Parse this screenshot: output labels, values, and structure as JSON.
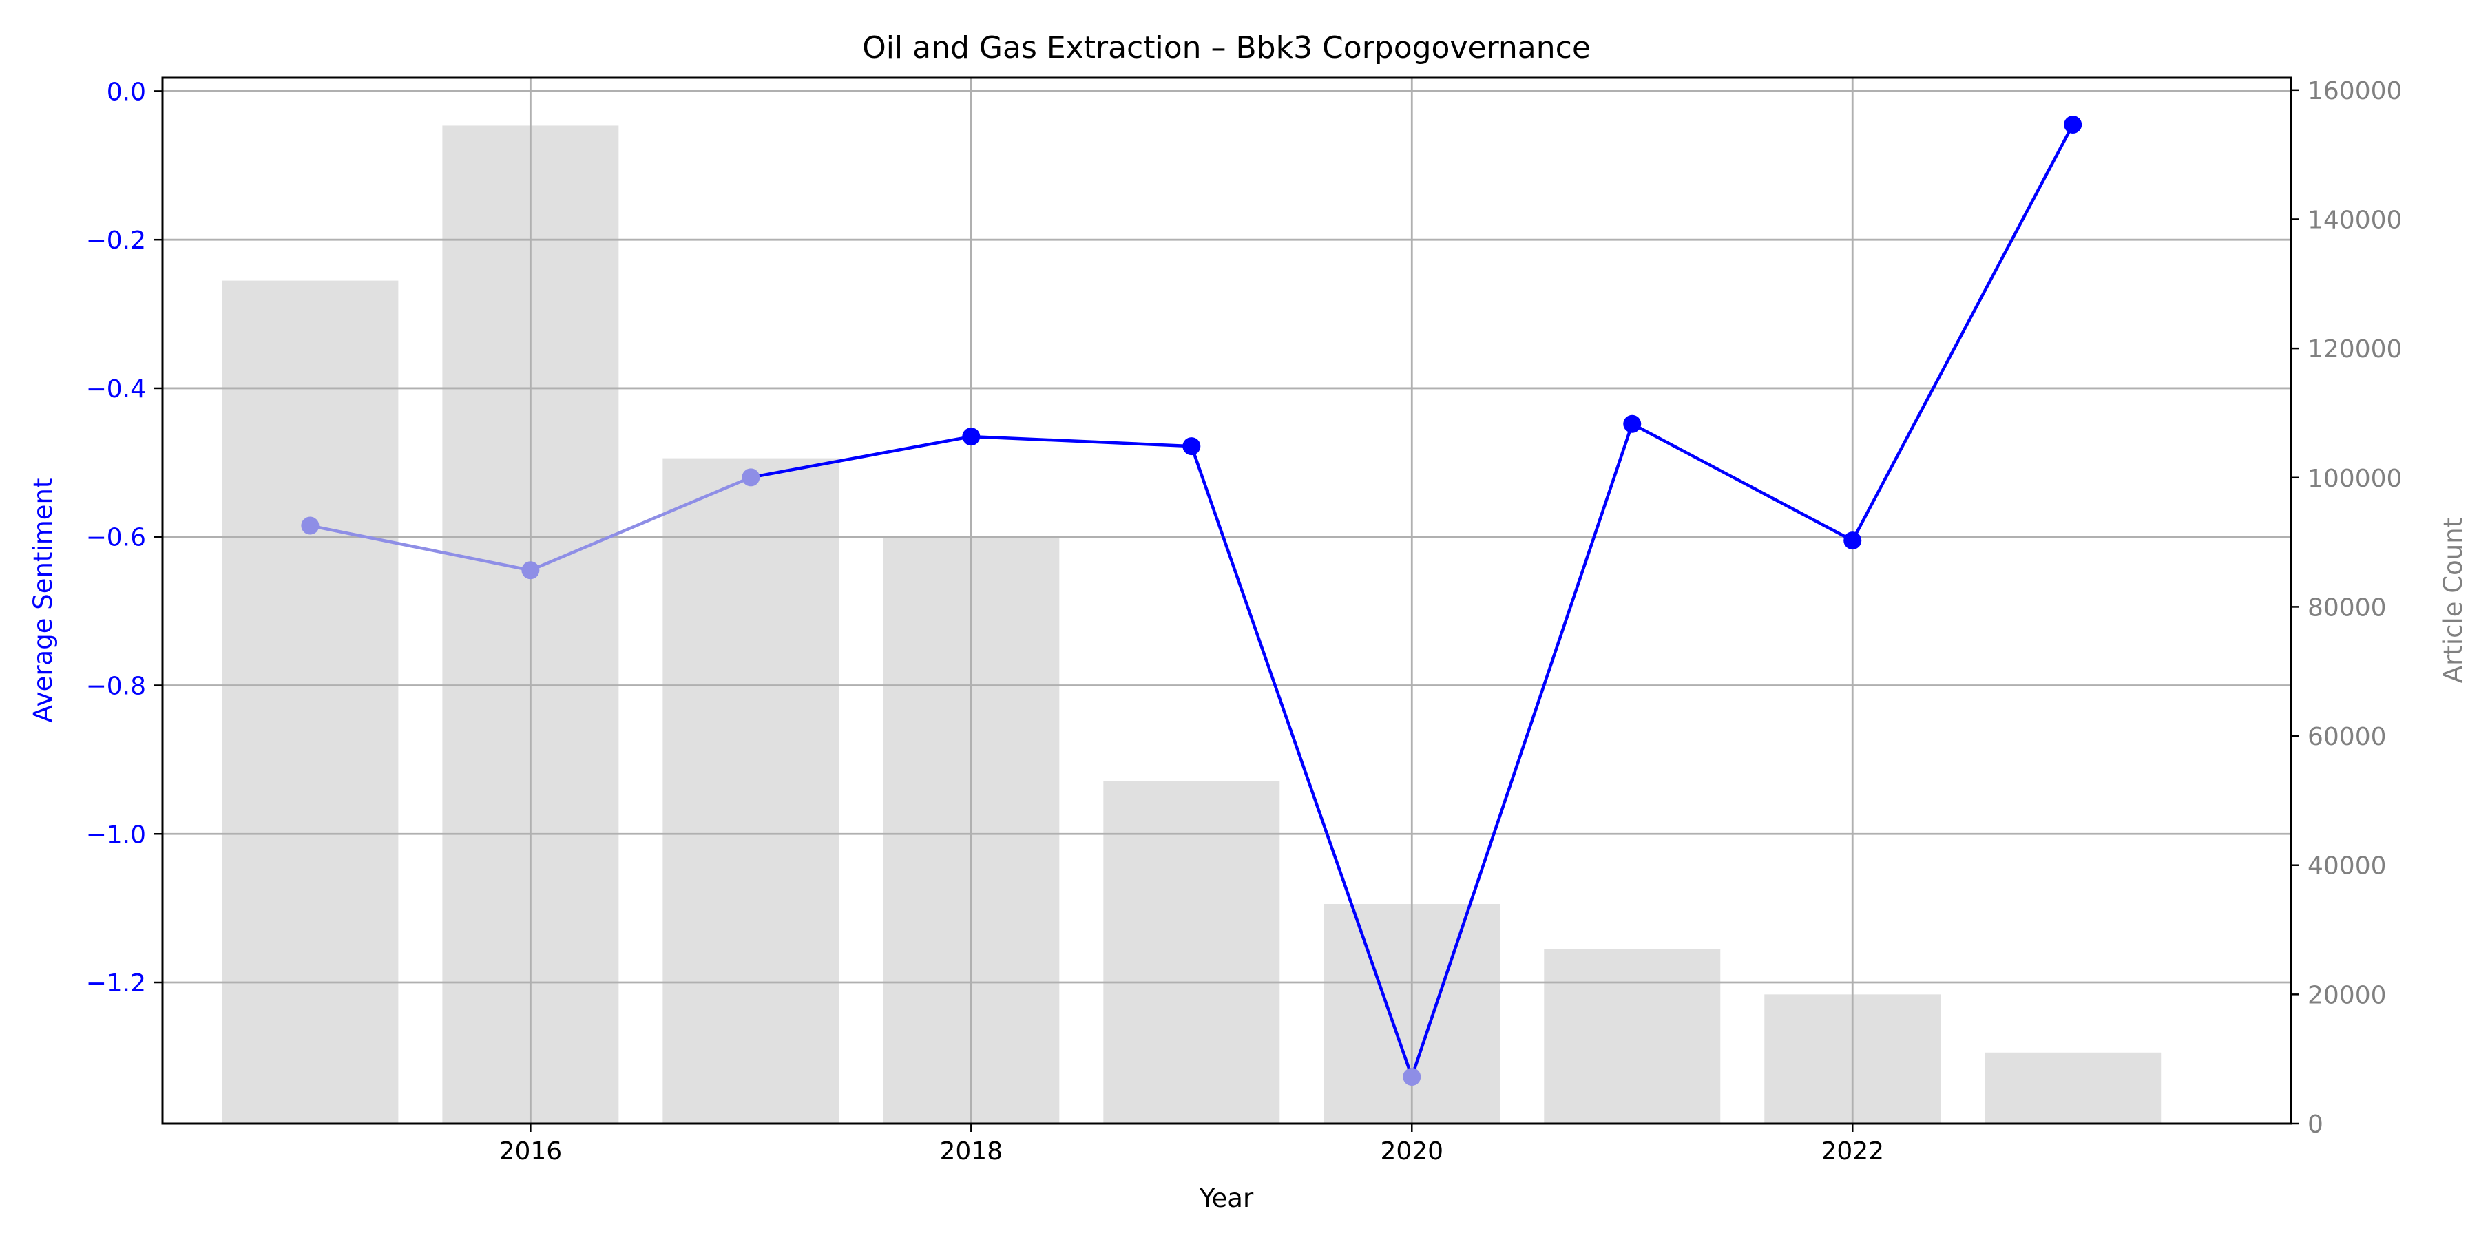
{
  "colors": {
    "sentiment": "#0000ff",
    "sentiment_faded": "#8e8ee6",
    "count_axis": "#808080",
    "bar": "#e0e0e0",
    "grid": "#b0b0b0",
    "frame": "#000000"
  },
  "chart_data": {
    "type": "bar",
    "title": "Oil and Gas Extraction – Bbk3 Corpogovernance",
    "xlabel": "Year",
    "ylabel_left": "Average Sentiment",
    "ylabel_right": "Article Count",
    "x": [
      2015,
      2016,
      2017,
      2018,
      2019,
      2020,
      2021,
      2022,
      2023
    ],
    "x_ticks": [
      "2016",
      "2018",
      "2020",
      "2022"
    ],
    "xlim": [
      2014.33,
      2023.99
    ],
    "grid": true,
    "series": [
      {
        "name": "Article Count",
        "kind": "bar",
        "axis": "right",
        "values": [
          130500,
          154500,
          103000,
          91000,
          53000,
          34000,
          27000,
          20000,
          11000
        ]
      },
      {
        "name": "Average Sentiment",
        "kind": "line",
        "axis": "left",
        "values": [
          -0.585,
          -0.645,
          -0.52,
          -0.465,
          -0.478,
          -1.327,
          -0.448,
          -0.605,
          -0.045
        ],
        "faded_points": [
          2015,
          2016,
          2017,
          2020
        ]
      }
    ],
    "left_axis": {
      "ylim": [
        -1.39,
        0.018
      ],
      "ticks": [
        "0.0",
        "−0.2",
        "−0.4",
        "−0.6",
        "−0.8",
        "−1.0",
        "−1.2"
      ],
      "tick_values": [
        0.0,
        -0.2,
        -0.4,
        -0.6,
        -0.8,
        -1.0,
        -1.2
      ]
    },
    "right_axis": {
      "ylim": [
        0,
        161900
      ],
      "ticks": [
        "0",
        "20000",
        "40000",
        "60000",
        "80000",
        "100000",
        "120000",
        "140000",
        "160000"
      ],
      "tick_values": [
        0,
        20000,
        40000,
        60000,
        80000,
        100000,
        120000,
        140000,
        160000
      ]
    }
  }
}
